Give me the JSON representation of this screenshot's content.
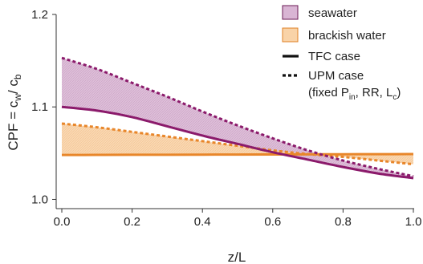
{
  "chart_data": {
    "type": "line",
    "xlabel": "z/L",
    "ylabel": {
      "prefix": "CPF = c",
      "sub1": "w",
      "mid": "/ c",
      "sub2": "b"
    },
    "xlim": [
      0,
      1
    ],
    "ylim": [
      0.99,
      1.2
    ],
    "xticks": [
      "0.0",
      "0.2",
      "0.4",
      "0.6",
      "0.8",
      "1.0"
    ],
    "yticks": [
      "1.0",
      "1.1",
      "1.2"
    ],
    "x": [
      0,
      0.1,
      0.2,
      0.3,
      0.4,
      0.5,
      0.6,
      0.7,
      0.8,
      0.9,
      1.0
    ],
    "series": [
      {
        "name": "seawater",
        "case": "TFC case",
        "color": "#8b1a6b",
        "values": [
          1.1,
          1.096,
          1.089,
          1.079,
          1.069,
          1.06,
          1.051,
          1.043,
          1.035,
          1.028,
          1.023
        ]
      },
      {
        "name": "seawater",
        "case": "UPM case",
        "color": "#8b1a6b",
        "values": [
          1.153,
          1.141,
          1.126,
          1.111,
          1.095,
          1.08,
          1.066,
          1.053,
          1.042,
          1.033,
          1.025
        ]
      },
      {
        "name": "brackish water",
        "case": "TFC case",
        "color": "#e8862a",
        "values": [
          1.048,
          1.0481,
          1.0482,
          1.0483,
          1.0484,
          1.0485,
          1.0486,
          1.0487,
          1.0488,
          1.0489,
          1.049
        ]
      },
      {
        "name": "brackish water",
        "case": "UPM case",
        "color": "#e8862a",
        "values": [
          1.082,
          1.078,
          1.073,
          1.068,
          1.063,
          1.058,
          1.053,
          1.049,
          1.046,
          1.042,
          1.038
        ]
      }
    ],
    "fills": [
      {
        "name": "seawater",
        "color": "#d9b5d4",
        "edge": "#8b1a6b"
      },
      {
        "name": "brackish water",
        "color": "#f9d3a8",
        "edge": "#e8862a"
      }
    ],
    "legend": {
      "placement": "top-right",
      "entries": [
        "seawater",
        "brackish water",
        "TFC case",
        "UPM case"
      ],
      "note": {
        "prefix": "(fixed P",
        "sub": "in",
        "suffix": ", RR, L",
        "sub2": "c",
        "end": ")"
      }
    }
  }
}
